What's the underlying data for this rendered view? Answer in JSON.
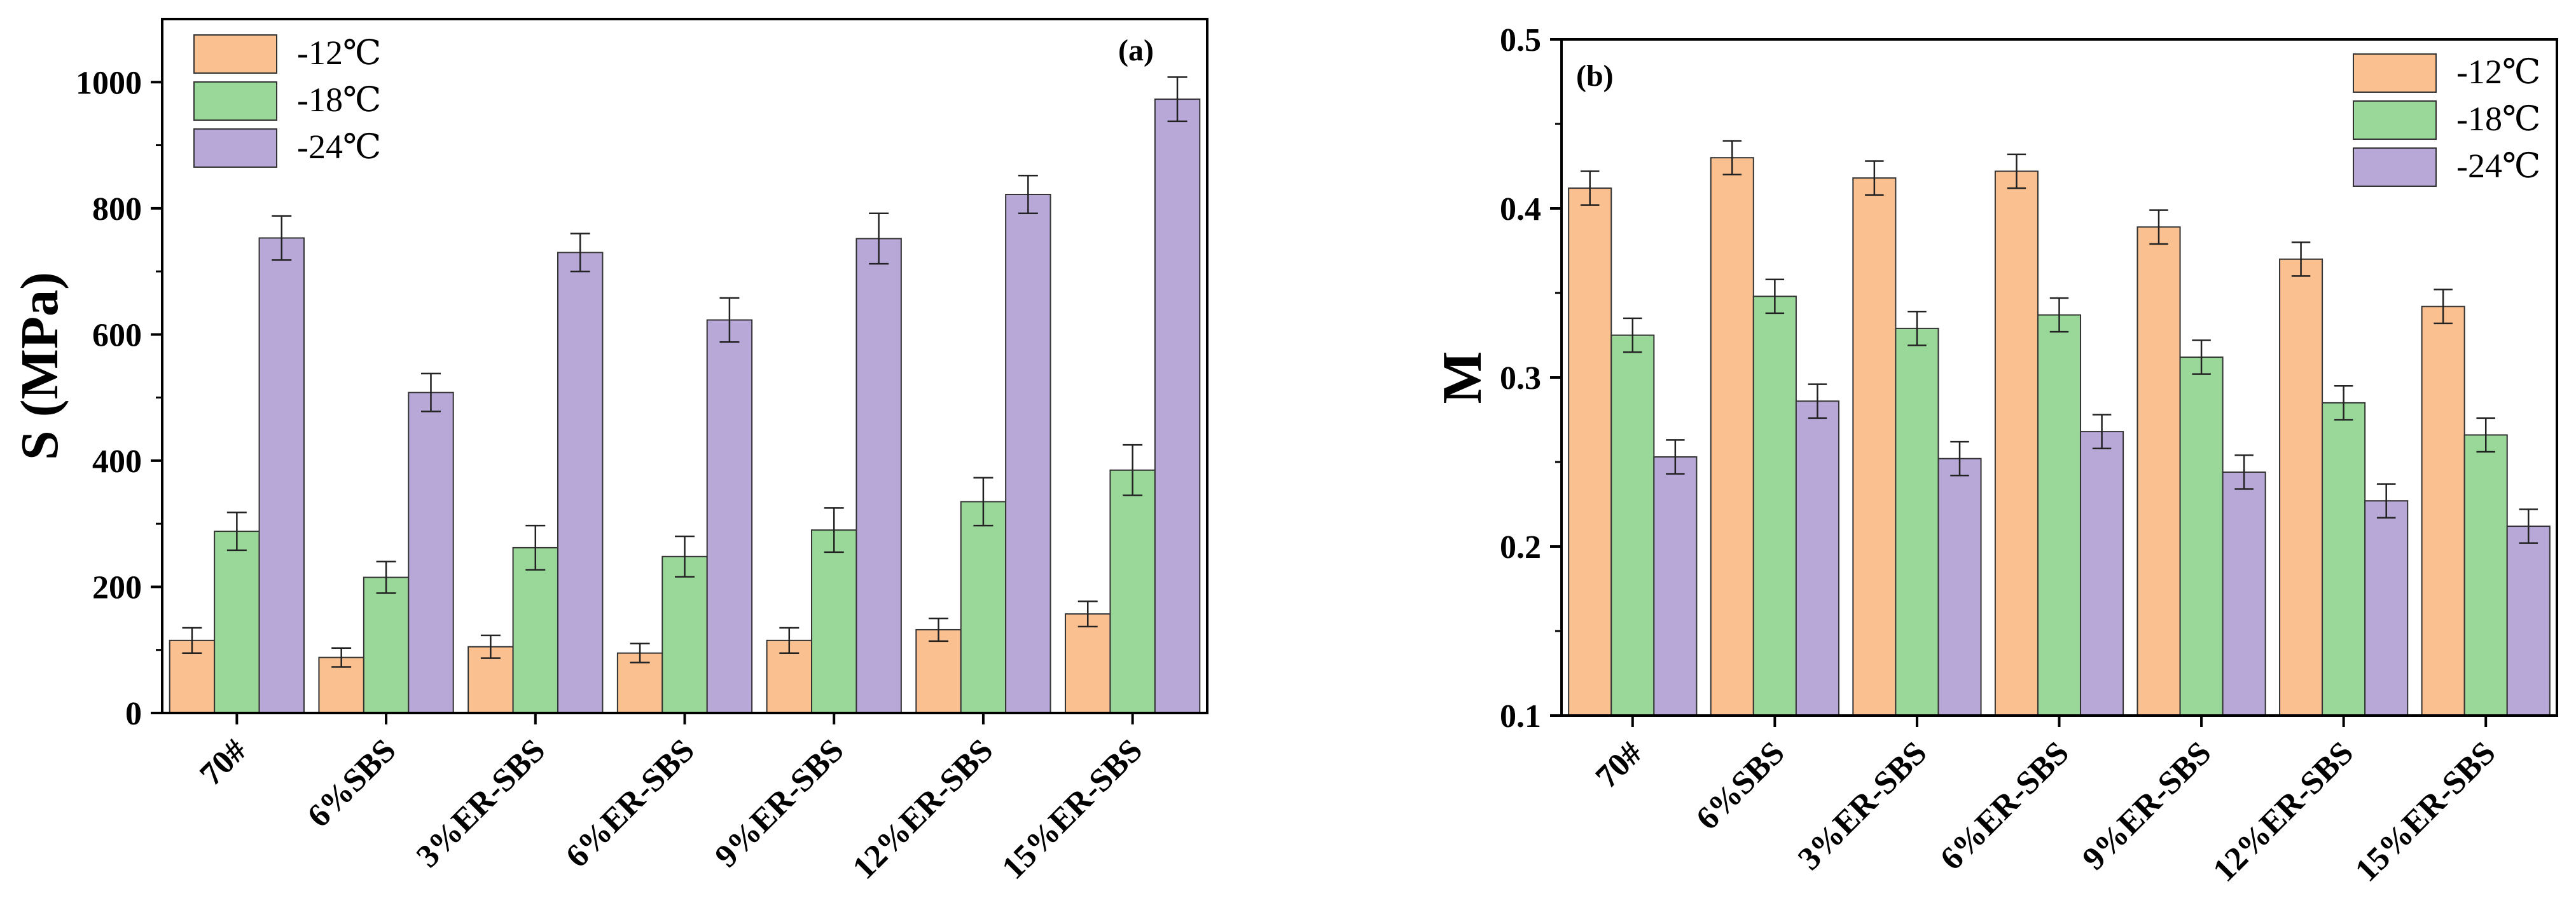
{
  "chart_data": [
    {
      "type": "bar",
      "panel_label": "(a)",
      "title": "",
      "xlabel": "",
      "ylabel": "S (MPa)",
      "ylim": [
        0,
        1100
      ],
      "yticks": [
        "0",
        "200",
        "400",
        "600",
        "800",
        "1000"
      ],
      "categories": [
        "70#",
        "6%SBS",
        "3%ER-SBS",
        "6%ER-SBS",
        "9%ER-SBS",
        "12%ER-SBS",
        "15%ER-SBS"
      ],
      "series": [
        {
          "name": "-12℃",
          "color": "#FAC090",
          "values": [
            115,
            88,
            105,
            95,
            115,
            132,
            157
          ],
          "errors": [
            20,
            15,
            18,
            15,
            20,
            18,
            20
          ]
        },
        {
          "name": "-18℃",
          "color": "#9AD89A",
          "values": [
            288,
            215,
            262,
            248,
            290,
            335,
            385
          ],
          "errors": [
            30,
            25,
            35,
            32,
            35,
            38,
            40
          ]
        },
        {
          "name": "-24℃",
          "color": "#B8A8D8",
          "values": [
            753,
            508,
            730,
            623,
            752,
            822,
            973
          ],
          "errors": [
            35,
            30,
            30,
            35,
            40,
            30,
            35
          ]
        }
      ],
      "legend_position": "top-left"
    },
    {
      "type": "bar",
      "panel_label": "(b)",
      "title": "",
      "xlabel": "",
      "ylabel": "M",
      "ylim": [
        0.1,
        0.5
      ],
      "yticks": [
        "0.1",
        "0.2",
        "0.3",
        "0.4",
        "0.5"
      ],
      "categories": [
        "70#",
        "6%SBS",
        "3%ER-SBS",
        "6%ER-SBS",
        "9%ER-SBS",
        "12%ER-SBS",
        "15%ER-SBS"
      ],
      "series": [
        {
          "name": "-12℃",
          "color": "#FAC090",
          "values": [
            0.412,
            0.43,
            0.418,
            0.422,
            0.389,
            0.37,
            0.342
          ],
          "errors": [
            0.01,
            0.01,
            0.01,
            0.01,
            0.01,
            0.01,
            0.01
          ]
        },
        {
          "name": "-18℃",
          "color": "#9AD89A",
          "values": [
            0.325,
            0.348,
            0.329,
            0.337,
            0.312,
            0.285,
            0.266
          ],
          "errors": [
            0.01,
            0.01,
            0.01,
            0.01,
            0.01,
            0.01,
            0.01
          ]
        },
        {
          "name": "-24℃",
          "color": "#B8A8D8",
          "values": [
            0.253,
            0.286,
            0.252,
            0.268,
            0.244,
            0.227,
            0.212
          ],
          "errors": [
            0.01,
            0.01,
            0.01,
            0.01,
            0.01,
            0.01,
            0.01
          ]
        }
      ],
      "legend_position": "top-right"
    }
  ]
}
